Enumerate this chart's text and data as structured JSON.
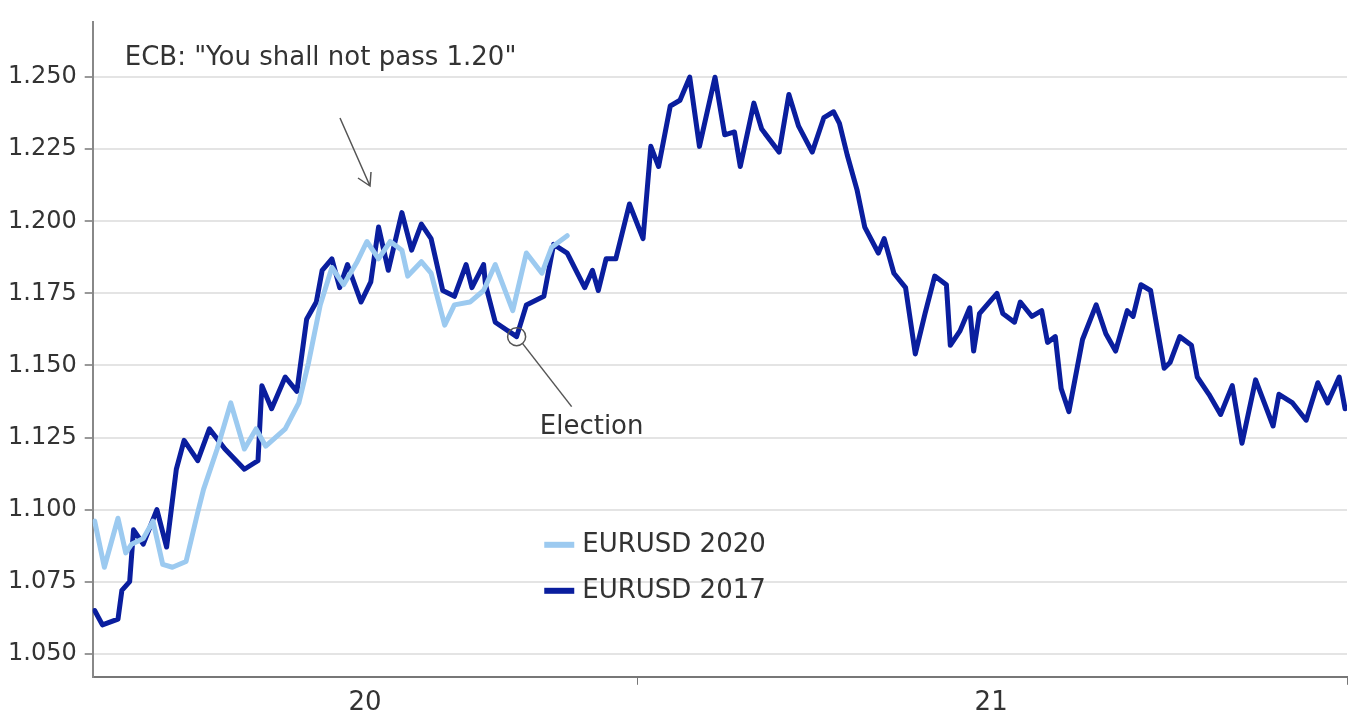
{
  "chart_data": {
    "type": "line",
    "x": [
      "2020-03-28",
      "2020-04-01",
      "2020-04-09",
      "2020-04-11",
      "2020-04-15",
      "2020-04-17",
      "2020-04-22",
      "2020-04-29",
      "2020-05-04",
      "2020-05-09",
      "2020-05-13",
      "2020-05-20",
      "2020-05-26",
      "2020-06-03",
      "2020-06-13",
      "2020-06-20",
      "2020-06-22",
      "2020-06-27",
      "2020-07-04",
      "2020-07-10",
      "2020-07-15",
      "2020-07-20",
      "2020-07-23",
      "2020-07-28",
      "2020-08-01",
      "2020-08-05",
      "2020-08-12",
      "2020-08-17",
      "2020-08-21",
      "2020-08-26",
      "2020-09-02",
      "2020-09-07",
      "2020-09-12",
      "2020-09-17",
      "2020-09-23",
      "2020-09-29",
      "2020-10-05",
      "2020-10-08",
      "2020-10-14",
      "2020-10-15",
      "2020-10-20",
      "2020-10-31",
      "2020-11-05",
      "2020-11-14",
      "2020-11-19",
      "2020-11-26",
      "2020-12-05",
      "2020-12-09",
      "2020-12-12",
      "2020-12-16",
      "2020-12-21",
      "2020-12-28",
      "2021-01-04",
      "2021-01-08",
      "2021-01-12",
      "2021-01-18",
      "2021-01-23",
      "2021-01-28",
      "2021-02-02",
      "2021-02-10",
      "2021-02-15",
      "2021-02-20",
      "2021-02-23",
      "2021-03-02",
      "2021-03-06",
      "2021-03-15",
      "2021-03-20",
      "2021-03-25",
      "2021-04-01",
      "2021-04-07",
      "2021-04-12",
      "2021-04-15",
      "2021-04-19",
      "2021-04-24",
      "2021-04-28",
      "2021-05-05",
      "2021-05-08",
      "2021-05-13",
      "2021-05-19",
      "2021-05-24",
      "2021-05-29",
      "2021-06-03",
      "2021-06-09",
      "2021-06-11",
      "2021-06-16",
      "2021-06-21",
      "2021-06-23",
      "2021-06-26",
      "2021-07-05",
      "2021-07-08",
      "2021-07-14",
      "2021-07-17",
      "2021-07-23",
      "2021-07-28",
      "2021-07-31",
      "2021-08-04",
      "2021-08-07",
      "2021-08-11",
      "2021-08-18",
      "2021-08-25",
      "2021-08-30",
      "2021-09-04",
      "2021-09-10",
      "2021-09-13",
      "2021-09-17",
      "2021-09-22",
      "2021-09-29",
      "2021-10-02",
      "2021-10-07",
      "2021-10-13",
      "2021-10-16",
      "2021-10-22",
      "2021-10-28",
      "2021-11-03",
      "2021-11-08",
      "2021-11-15",
      "2021-11-24",
      "2021-11-27",
      "2021-12-04",
      "2021-12-11",
      "2021-12-17",
      "2021-12-22",
      "2021-12-28",
      "2021-12-31"
    ],
    "series": [
      {
        "name": "EURUSD 2020",
        "color": "#9ccaf0",
        "x": [
          "2020-03-28",
          "2020-04-02",
          "2020-04-09",
          "2020-04-13",
          "2020-04-16",
          "2020-04-22",
          "2020-04-27",
          "2020-05-02",
          "2020-05-07",
          "2020-05-14",
          "2020-05-20",
          "2020-05-23",
          "2020-05-30",
          "2020-06-06",
          "2020-06-13",
          "2020-06-19",
          "2020-06-24",
          "2020-07-04",
          "2020-07-11",
          "2020-07-16",
          "2020-07-22",
          "2020-07-28",
          "2020-08-03",
          "2020-08-10",
          "2020-08-15",
          "2020-08-21",
          "2020-08-27",
          "2020-09-02",
          "2020-09-05",
          "2020-09-12",
          "2020-09-17",
          "2020-09-24",
          "2020-09-29",
          "2020-10-07",
          "2020-10-14",
          "2020-10-20",
          "2020-10-29",
          "2020-11-05",
          "2020-11-13",
          "2020-11-18",
          "2020-11-26"
        ],
        "values": [
          1.096,
          1.08,
          1.097,
          1.085,
          1.088,
          1.09,
          1.096,
          1.081,
          1.08,
          1.082,
          1.099,
          1.107,
          1.121,
          1.137,
          1.121,
          1.128,
          1.122,
          1.128,
          1.137,
          1.151,
          1.171,
          1.184,
          1.178,
          1.186,
          1.193,
          1.187,
          1.193,
          1.19,
          1.181,
          1.186,
          1.182,
          1.164,
          1.171,
          1.172,
          1.176,
          1.185,
          1.169,
          1.189,
          1.182,
          1.191,
          1.195
        ]
      },
      {
        "name": "EURUSD 2017",
        "color": "#0a1e9e",
        "values": [
          1.065,
          1.06,
          1.062,
          1.072,
          1.075,
          1.093,
          1.088,
          1.1,
          1.087,
          1.114,
          1.124,
          1.117,
          1.128,
          1.121,
          1.114,
          1.117,
          1.143,
          1.135,
          1.146,
          1.141,
          1.166,
          1.172,
          1.183,
          1.187,
          1.177,
          1.185,
          1.172,
          1.179,
          1.198,
          1.183,
          1.203,
          1.19,
          1.199,
          1.194,
          1.176,
          1.174,
          1.185,
          1.177,
          1.185,
          1.178,
          1.165,
          1.16,
          1.171,
          1.174,
          1.192,
          1.189,
          1.177,
          1.183,
          1.176,
          1.187,
          1.187,
          1.206,
          1.194,
          1.226,
          1.219,
          1.24,
          1.242,
          1.25,
          1.226,
          1.25,
          1.23,
          1.231,
          1.219,
          1.241,
          1.232,
          1.224,
          1.244,
          1.233,
          1.224,
          1.236,
          1.238,
          1.234,
          1.223,
          1.211,
          1.198,
          1.189,
          1.194,
          1.182,
          1.177,
          1.154,
          1.168,
          1.181,
          1.178,
          1.157,
          1.162,
          1.17,
          1.155,
          1.168,
          1.175,
          1.168,
          1.165,
          1.172,
          1.167,
          1.169,
          1.158,
          1.16,
          1.142,
          1.134,
          1.159,
          1.171,
          1.161,
          1.155,
          1.169,
          1.167,
          1.178,
          1.176,
          1.149,
          1.151,
          1.16,
          1.157,
          1.146,
          1.14,
          1.133,
          1.143,
          1.123,
          1.145,
          1.129,
          1.14,
          1.137,
          1.131,
          1.144,
          1.137,
          1.146,
          1.135
        ]
      }
    ],
    "xlim": [
      "2020-03-27",
      "2022-01-01"
    ],
    "xticks": [
      {
        "value": "2020-08-14",
        "label": "20"
      },
      {
        "value": "2021-01-01",
        "label": null
      },
      {
        "value": "2021-07-02",
        "label": "21"
      },
      {
        "value": "2022-01-01",
        "label": null
      }
    ],
    "ylim": [
      1.042,
      1.269
    ],
    "yticks": [
      {
        "value": 1.05,
        "label": "1.050"
      },
      {
        "value": 1.075,
        "label": "1.075"
      },
      {
        "value": 1.1,
        "label": "1.100"
      },
      {
        "value": 1.125,
        "label": "1.125"
      },
      {
        "value": 1.15,
        "label": "1.150"
      },
      {
        "value": 1.175,
        "label": "1.175"
      },
      {
        "value": 1.2,
        "label": "1.200"
      },
      {
        "value": 1.225,
        "label": "1.225"
      },
      {
        "value": 1.25,
        "label": "1.250"
      }
    ],
    "annotations": [
      "ECB: \"You shall not pass 1.20\"",
      {
        "text": "Election",
        "x": "2020-10-31",
        "y": 1.16
      }
    ],
    "grid": "y",
    "legend": "bottom",
    "marker": "none",
    "line_style": "solid"
  }
}
